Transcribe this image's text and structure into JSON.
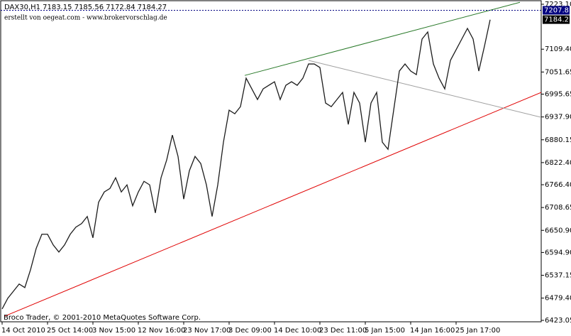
{
  "chart_data": {
    "type": "line",
    "title": "DAX30,H1  7183.15 7185.56 7172.84 7184.27",
    "subtitle": "erstellt von oegeat.com - www.brokervorschlag.de",
    "footer": "Broco Trader, © 2001-2010 MetaQuotes Software Corp.",
    "color": "#1c1c1c",
    "categories": [
      "14 Oct 2010",
      null,
      null,
      null,
      null,
      null,
      null,
      null,
      "25 Oct 14:00",
      null,
      null,
      null,
      null,
      null,
      null,
      null,
      "3 Nov 15:00",
      null,
      null,
      null,
      null,
      null,
      null,
      null,
      "12 Nov 16:00",
      null,
      null,
      null,
      null,
      null,
      null,
      null,
      "23 Nov 17:00",
      null,
      null,
      null,
      null,
      null,
      null,
      null,
      "3 Dec 09:00",
      null,
      null,
      null,
      null,
      null,
      null,
      null,
      "14 Dec 10:00",
      null,
      null,
      null,
      null,
      null,
      null,
      null,
      "23 Dec 11:00",
      null,
      null,
      null,
      null,
      null,
      null,
      null,
      "5 Jan 15:00",
      null,
      null,
      null,
      null,
      null,
      null,
      null,
      "14 Jan 16:00",
      null,
      null,
      null,
      null,
      null,
      null,
      null,
      "25 Jan 17:00",
      null,
      null,
      null,
      null,
      null,
      null
    ],
    "values": [
      6452,
      6479,
      6497,
      6515,
      6506,
      6551,
      6605,
      6641,
      6641,
      6614,
      6596,
      6614,
      6641,
      6659,
      6668,
      6686,
      6632,
      6722,
      6748,
      6757,
      6784,
      6748,
      6766,
      6713,
      6748,
      6775,
      6766,
      6695,
      6784,
      6829,
      6892,
      6838,
      6730,
      6802,
      6838,
      6820,
      6766,
      6686,
      6766,
      6874,
      6955,
      6946,
      6964,
      7036,
      7009,
      6982,
      7009,
      7018,
      7027,
      6982,
      7018,
      7027,
      7018,
      7036,
      7072,
      7072,
      7063,
      6973,
      6964,
      6982,
      7000,
      6919,
      7000,
      6973,
      6874,
      6973,
      7000,
      6874,
      6856,
      6955,
      7054,
      7072,
      7054,
      7045,
      7135,
      7153,
      7072,
      7036,
      7009,
      7081,
      7108,
      7135,
      7162,
      7135,
      7054,
      7117,
      7184
    ],
    "ylim": [
      6423.05,
      7223.1
    ],
    "yticks": [
      {
        "value": 7223.1,
        "label": "7223.10"
      },
      {
        "value": 7109.4,
        "label": "7109.40"
      },
      {
        "value": 7051.65,
        "label": "7051.65"
      },
      {
        "value": 6995.65,
        "label": "6995.65"
      },
      {
        "value": 6937.9,
        "label": "6937.90"
      },
      {
        "value": 6880.15,
        "label": "6880.15"
      },
      {
        "value": 6822.4,
        "label": "6822.40"
      },
      {
        "value": 6766.4,
        "label": "6766.40"
      },
      {
        "value": 6708.65,
        "label": "6708.65"
      },
      {
        "value": 6650.9,
        "label": "6650.90"
      },
      {
        "value": 6594.9,
        "label": "6594.90"
      },
      {
        "value": 6537.15,
        "label": "6537.15"
      },
      {
        "value": 6479.4,
        "label": "6479.40"
      },
      {
        "value": 6423.05,
        "label": "6423.05"
      }
    ],
    "price_labels": [
      {
        "value": 7207.81,
        "label": "7207.81",
        "color": "#000080"
      },
      {
        "value": 7184.27,
        "label": "7184.27",
        "color": "#000000"
      }
    ],
    "trendlines": [
      {
        "color": "#e00000",
        "x": [
          0.5,
          95
        ],
        "y": [
          6434,
          7000
        ]
      },
      {
        "color": "#2a7a2a",
        "x": [
          42.75,
          91.25
        ],
        "y": [
          7043,
          7228
        ]
      },
      {
        "color": "#a0a0a0",
        "x": [
          54,
          95
        ],
        "y": [
          7081,
          6937
        ]
      }
    ]
  }
}
